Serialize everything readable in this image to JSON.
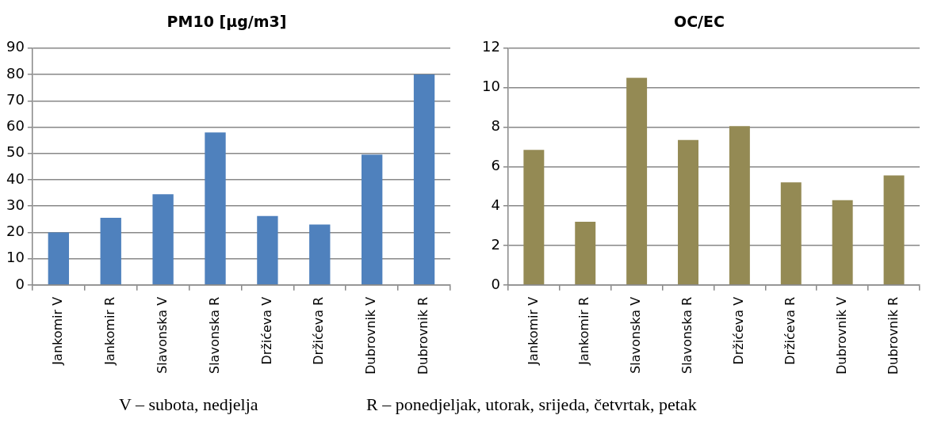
{
  "chart_data": [
    {
      "type": "bar",
      "title": "PM10 [µg/m3]",
      "categories": [
        "Jankomir V",
        "Jankomir R",
        "Slavonska V",
        "Slavonska R",
        "Držićeva V",
        "Držićeva R",
        "Dubrovnik V",
        "Dubrovnik R"
      ],
      "values": [
        20,
        25.5,
        34.5,
        58,
        26.2,
        23,
        49.5,
        80
      ],
      "color": "#4f81bd",
      "ylim": [
        0,
        90
      ],
      "yticks": [
        0,
        10,
        20,
        30,
        40,
        50,
        60,
        70,
        80,
        90
      ],
      "grid": "y",
      "legend": false,
      "annotations": [
        "V – subota, nedjelja",
        "R – ponedjeljak, utorak, srijeda, četvrtak, petak"
      ]
    },
    {
      "type": "bar",
      "title": "OC/EC",
      "categories": [
        "Jankomir V",
        "Jankomir R",
        "Slavonska V",
        "Slavonska R",
        "Držićeva V",
        "Držićeva R",
        "Dubrovnik V",
        "Dubrovnik R"
      ],
      "values": [
        6.85,
        3.2,
        10.5,
        7.35,
        8.05,
        5.2,
        4.3,
        5.55
      ],
      "color": "#948a54",
      "ylim": [
        0,
        12
      ],
      "yticks": [
        0,
        2,
        4,
        6,
        8,
        10,
        12
      ],
      "grid": "y",
      "legend": false
    }
  ]
}
